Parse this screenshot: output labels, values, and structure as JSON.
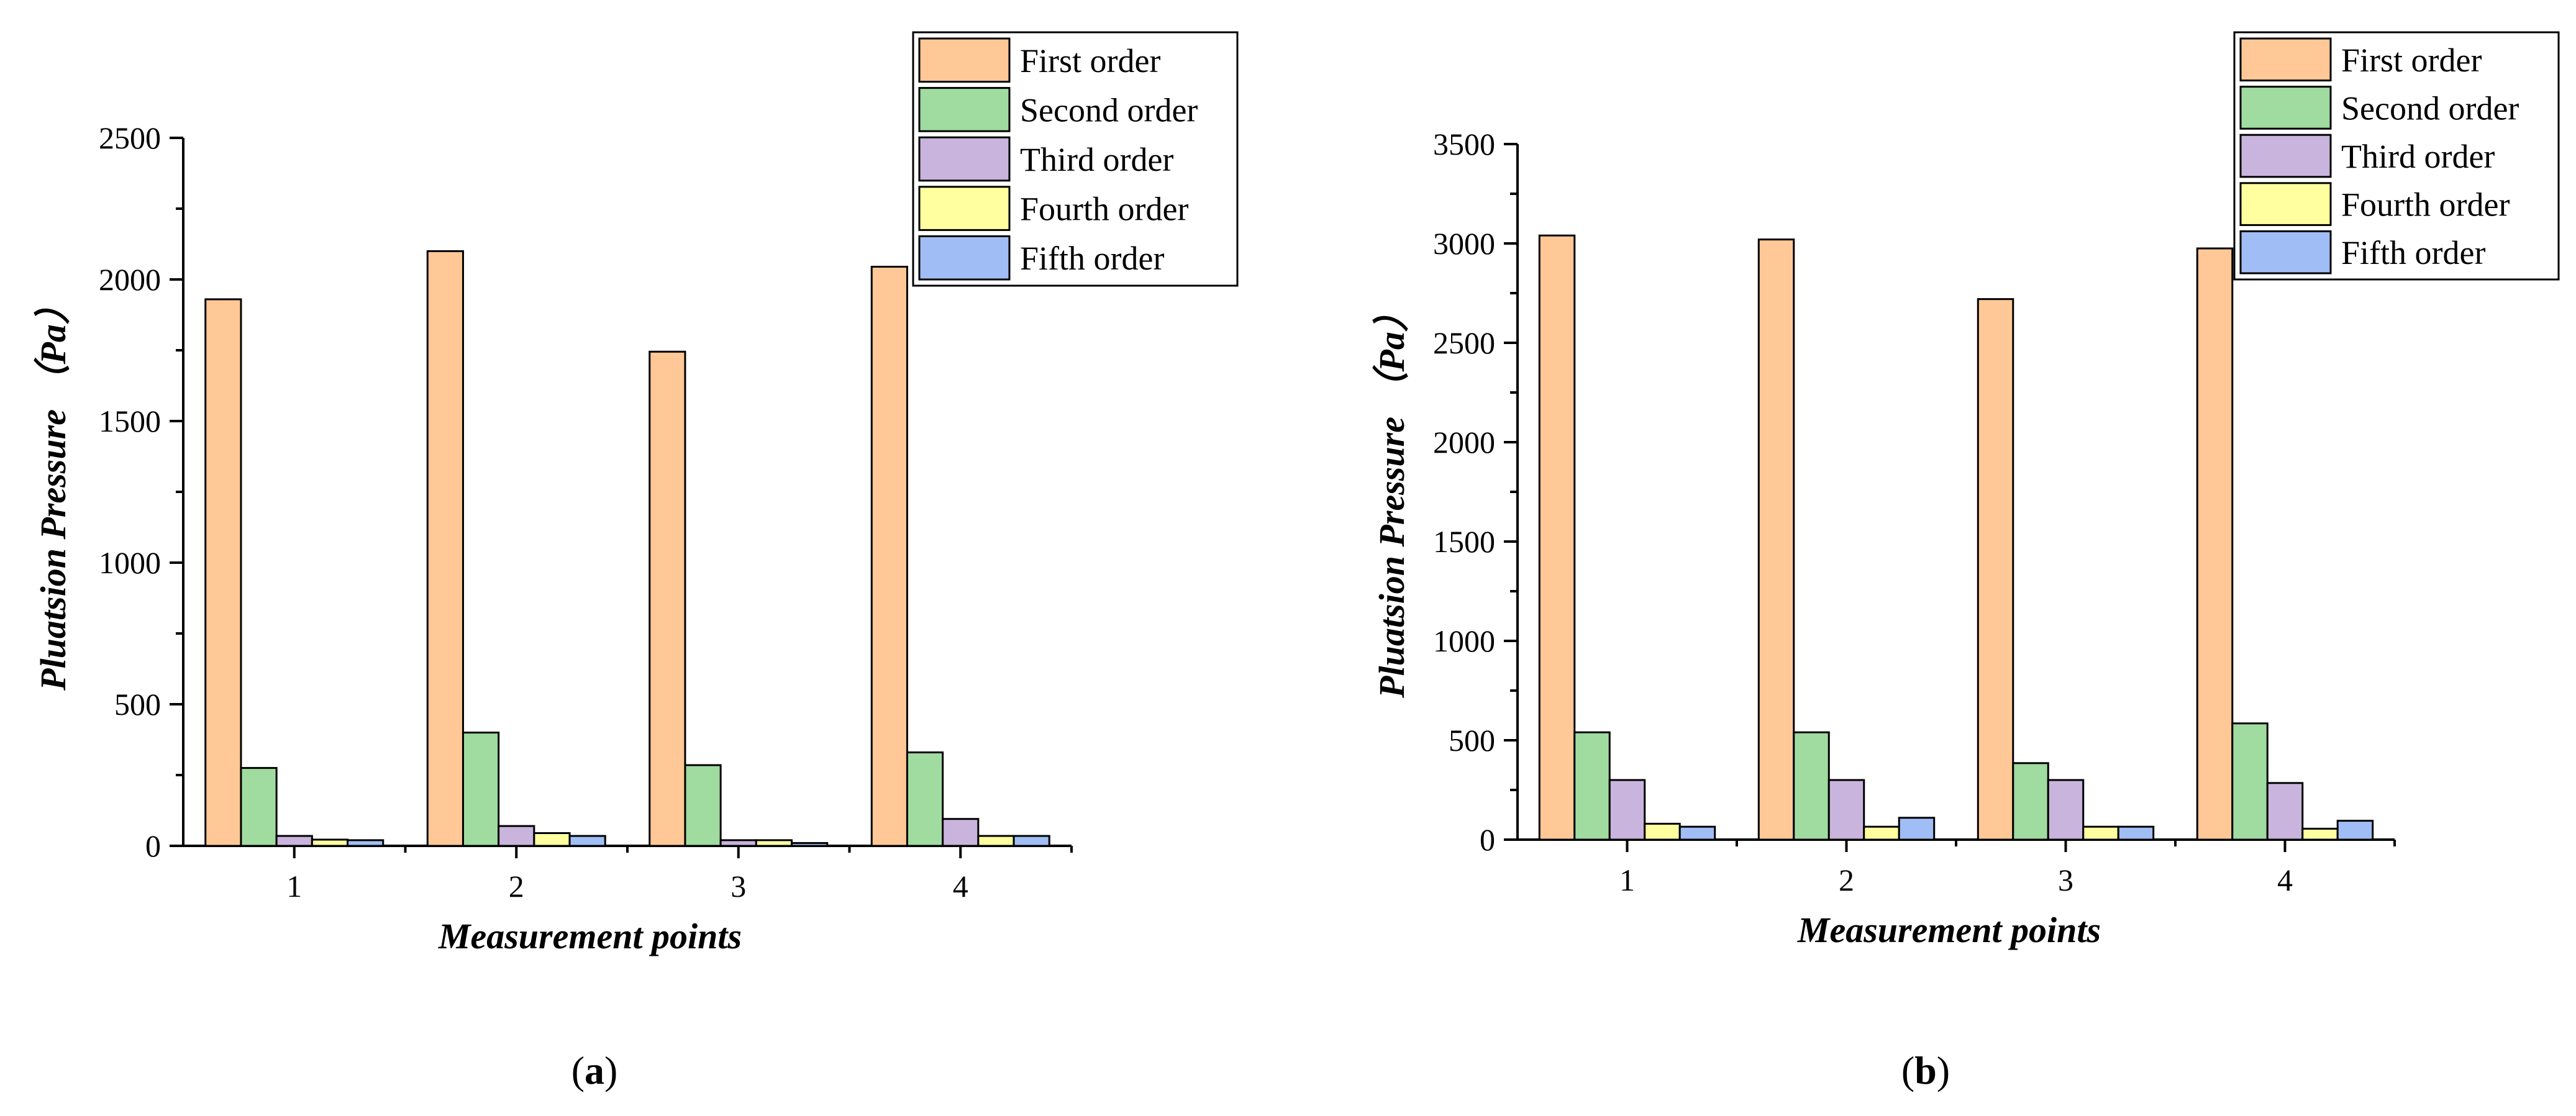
{
  "charts": [
    {
      "chart_data": {
        "type": "bar",
        "panel_label": "a",
        "categories": [
          "1",
          "2",
          "3",
          "4"
        ],
        "xlabel": "Measurement points",
        "ylabel": "Pluatsion Pressure （Pa）",
        "ylim": [
          0,
          2500
        ],
        "yticks": [
          0,
          500,
          1000,
          1500,
          2000,
          2500
        ],
        "grid": false,
        "legend_position": "top-right",
        "series": [
          {
            "name": "First order",
            "color": "#FFC896",
            "values": [
              1930,
              2100,
              1745,
              2045
            ]
          },
          {
            "name": "Second order",
            "color": "#A0DBA0",
            "values": [
              275,
              400,
              285,
              330
            ]
          },
          {
            "name": "Third order",
            "color": "#C8B4DC",
            "values": [
              35,
              70,
              20,
              95
            ]
          },
          {
            "name": "Fourth order",
            "color": "#FFFFA0",
            "values": [
              22,
              45,
              20,
              35
            ]
          },
          {
            "name": "Fifth order",
            "color": "#A0BEF5",
            "values": [
              20,
              35,
              10,
              35
            ]
          }
        ]
      }
    },
    {
      "chart_data": {
        "type": "bar",
        "panel_label": "b",
        "categories": [
          "1",
          "2",
          "3",
          "4"
        ],
        "xlabel": "Measurement points",
        "ylabel": "Pluatsion Pressure （Pa）",
        "ylim": [
          0,
          3500
        ],
        "yticks": [
          0,
          500,
          1000,
          1500,
          2000,
          2500,
          3000,
          3500
        ],
        "grid": false,
        "legend_position": "top-right",
        "series": [
          {
            "name": "First order",
            "color": "#FFC896",
            "values": [
              3040,
              3020,
              2720,
              2975
            ]
          },
          {
            "name": "Second order",
            "color": "#A0DBA0",
            "values": [
              540,
              540,
              385,
              585
            ]
          },
          {
            "name": "Third order",
            "color": "#C8B4DC",
            "values": [
              300,
              300,
              300,
              285
            ]
          },
          {
            "name": "Fourth order",
            "color": "#FFFFA0",
            "values": [
              80,
              65,
              65,
              55
            ]
          },
          {
            "name": "Fifth order",
            "color": "#A0BEF5",
            "values": [
              65,
              110,
              65,
              95
            ]
          }
        ]
      }
    }
  ],
  "style": {
    "stroke": "#000000",
    "background": "#ffffff"
  }
}
